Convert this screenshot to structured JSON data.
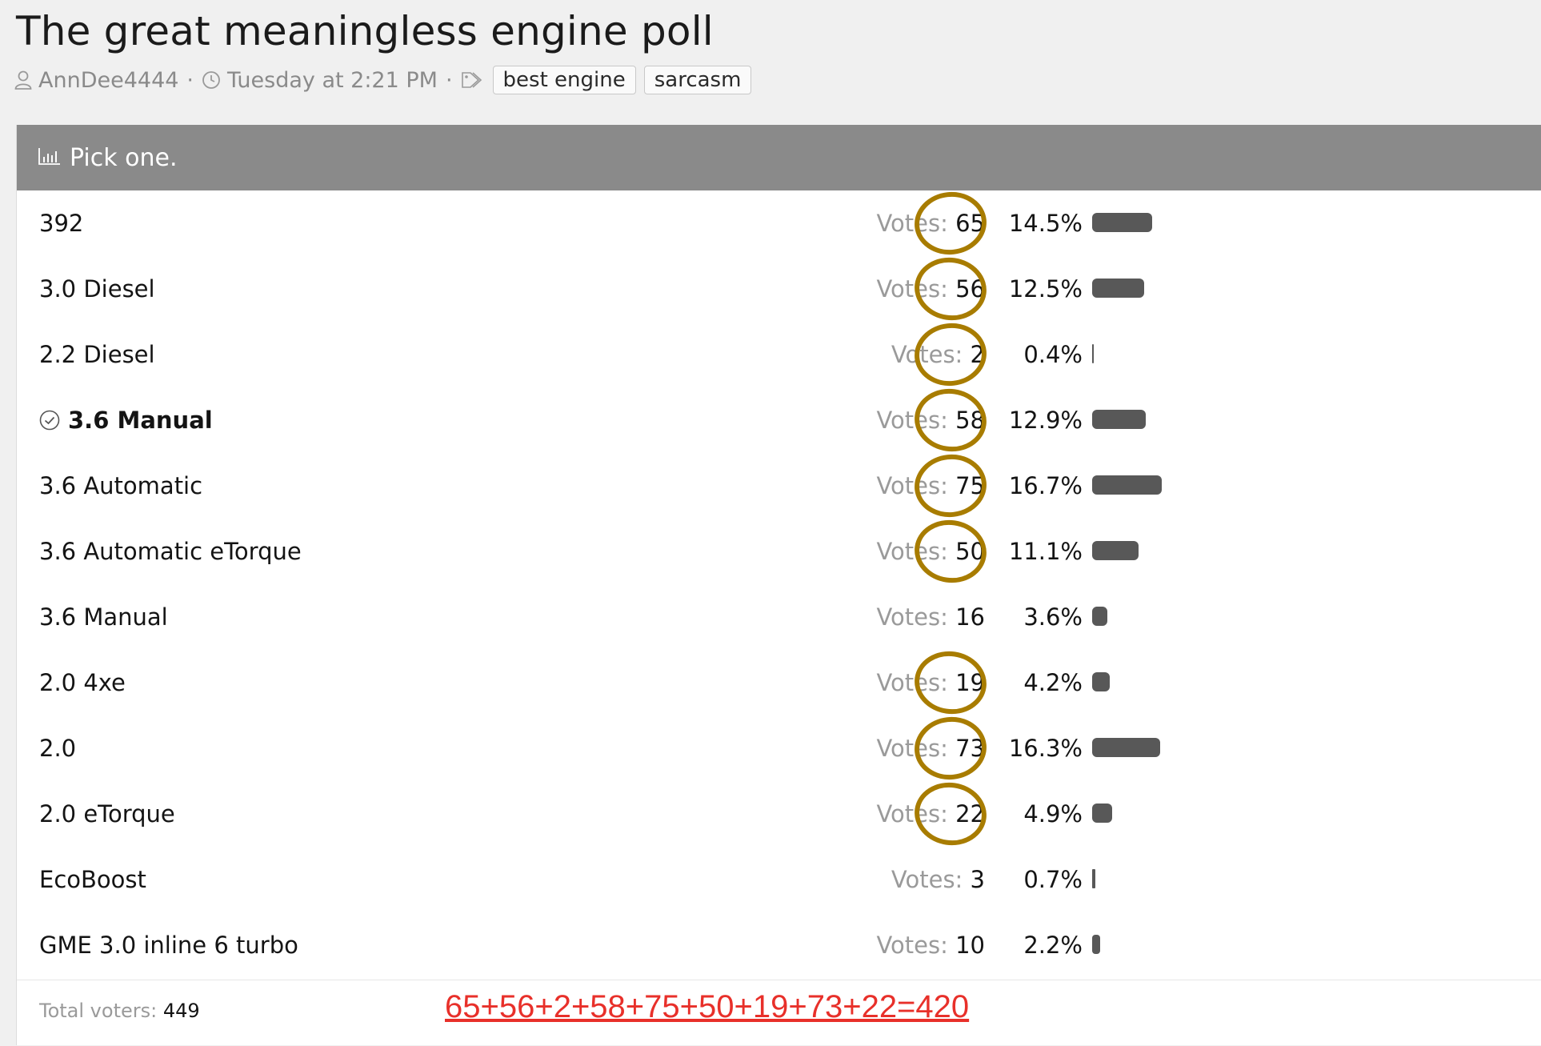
{
  "thread": {
    "title": "The great meaningless engine poll",
    "author": "AnnDee4444",
    "separator": "·",
    "date": "Tuesday at 2:21 PM",
    "tags": [
      "best engine",
      "sarcasm"
    ]
  },
  "poll": {
    "question": "Pick one.",
    "votes_label": "Votes:",
    "options": [
      {
        "label": "392",
        "votes": "65",
        "percent": "14.5%",
        "share": 14.5,
        "chosen": false
      },
      {
        "label": "3.0 Diesel",
        "votes": "56",
        "percent": "12.5%",
        "share": 12.5,
        "chosen": false
      },
      {
        "label": "2.2 Diesel",
        "votes": "2",
        "percent": "0.4%",
        "share": 0.4,
        "chosen": false
      },
      {
        "label": "3.6 Manual",
        "votes": "58",
        "percent": "12.9%",
        "share": 12.9,
        "chosen": true
      },
      {
        "label": "3.6 Automatic",
        "votes": "75",
        "percent": "16.7%",
        "share": 16.7,
        "chosen": false
      },
      {
        "label": "3.6 Automatic eTorque",
        "votes": "50",
        "percent": "11.1%",
        "share": 11.1,
        "chosen": false
      },
      {
        "label": "3.6 Manual",
        "votes": "16",
        "percent": "3.6%",
        "share": 3.6,
        "chosen": false
      },
      {
        "label": "2.0 4xe",
        "votes": "19",
        "percent": "4.2%",
        "share": 4.2,
        "chosen": false
      },
      {
        "label": "2.0",
        "votes": "73",
        "percent": "16.3%",
        "share": 16.3,
        "chosen": false
      },
      {
        "label": "2.0 eTorque",
        "votes": "22",
        "percent": "4.9%",
        "share": 4.9,
        "chosen": false
      },
      {
        "label": "EcoBoost",
        "votes": "3",
        "percent": "0.7%",
        "share": 0.7,
        "chosen": false
      },
      {
        "label": "GME 3.0 inline 6 turbo",
        "votes": "10",
        "percent": "2.2%",
        "share": 2.2,
        "chosen": false
      }
    ],
    "total_label": "Total voters:",
    "total_value": "449"
  },
  "annotations": {
    "sum_text": "65+56+2+58+75+50+19+73+22=420",
    "circled_rows": [
      0,
      1,
      2,
      3,
      4,
      5,
      7,
      8,
      9
    ],
    "circle_color": "#a87c00",
    "sum_color": "#e8302a"
  },
  "colors": {
    "header_bg": "#8a8a8a",
    "bar": "#585858",
    "page_bg": "#f0f0f0"
  }
}
